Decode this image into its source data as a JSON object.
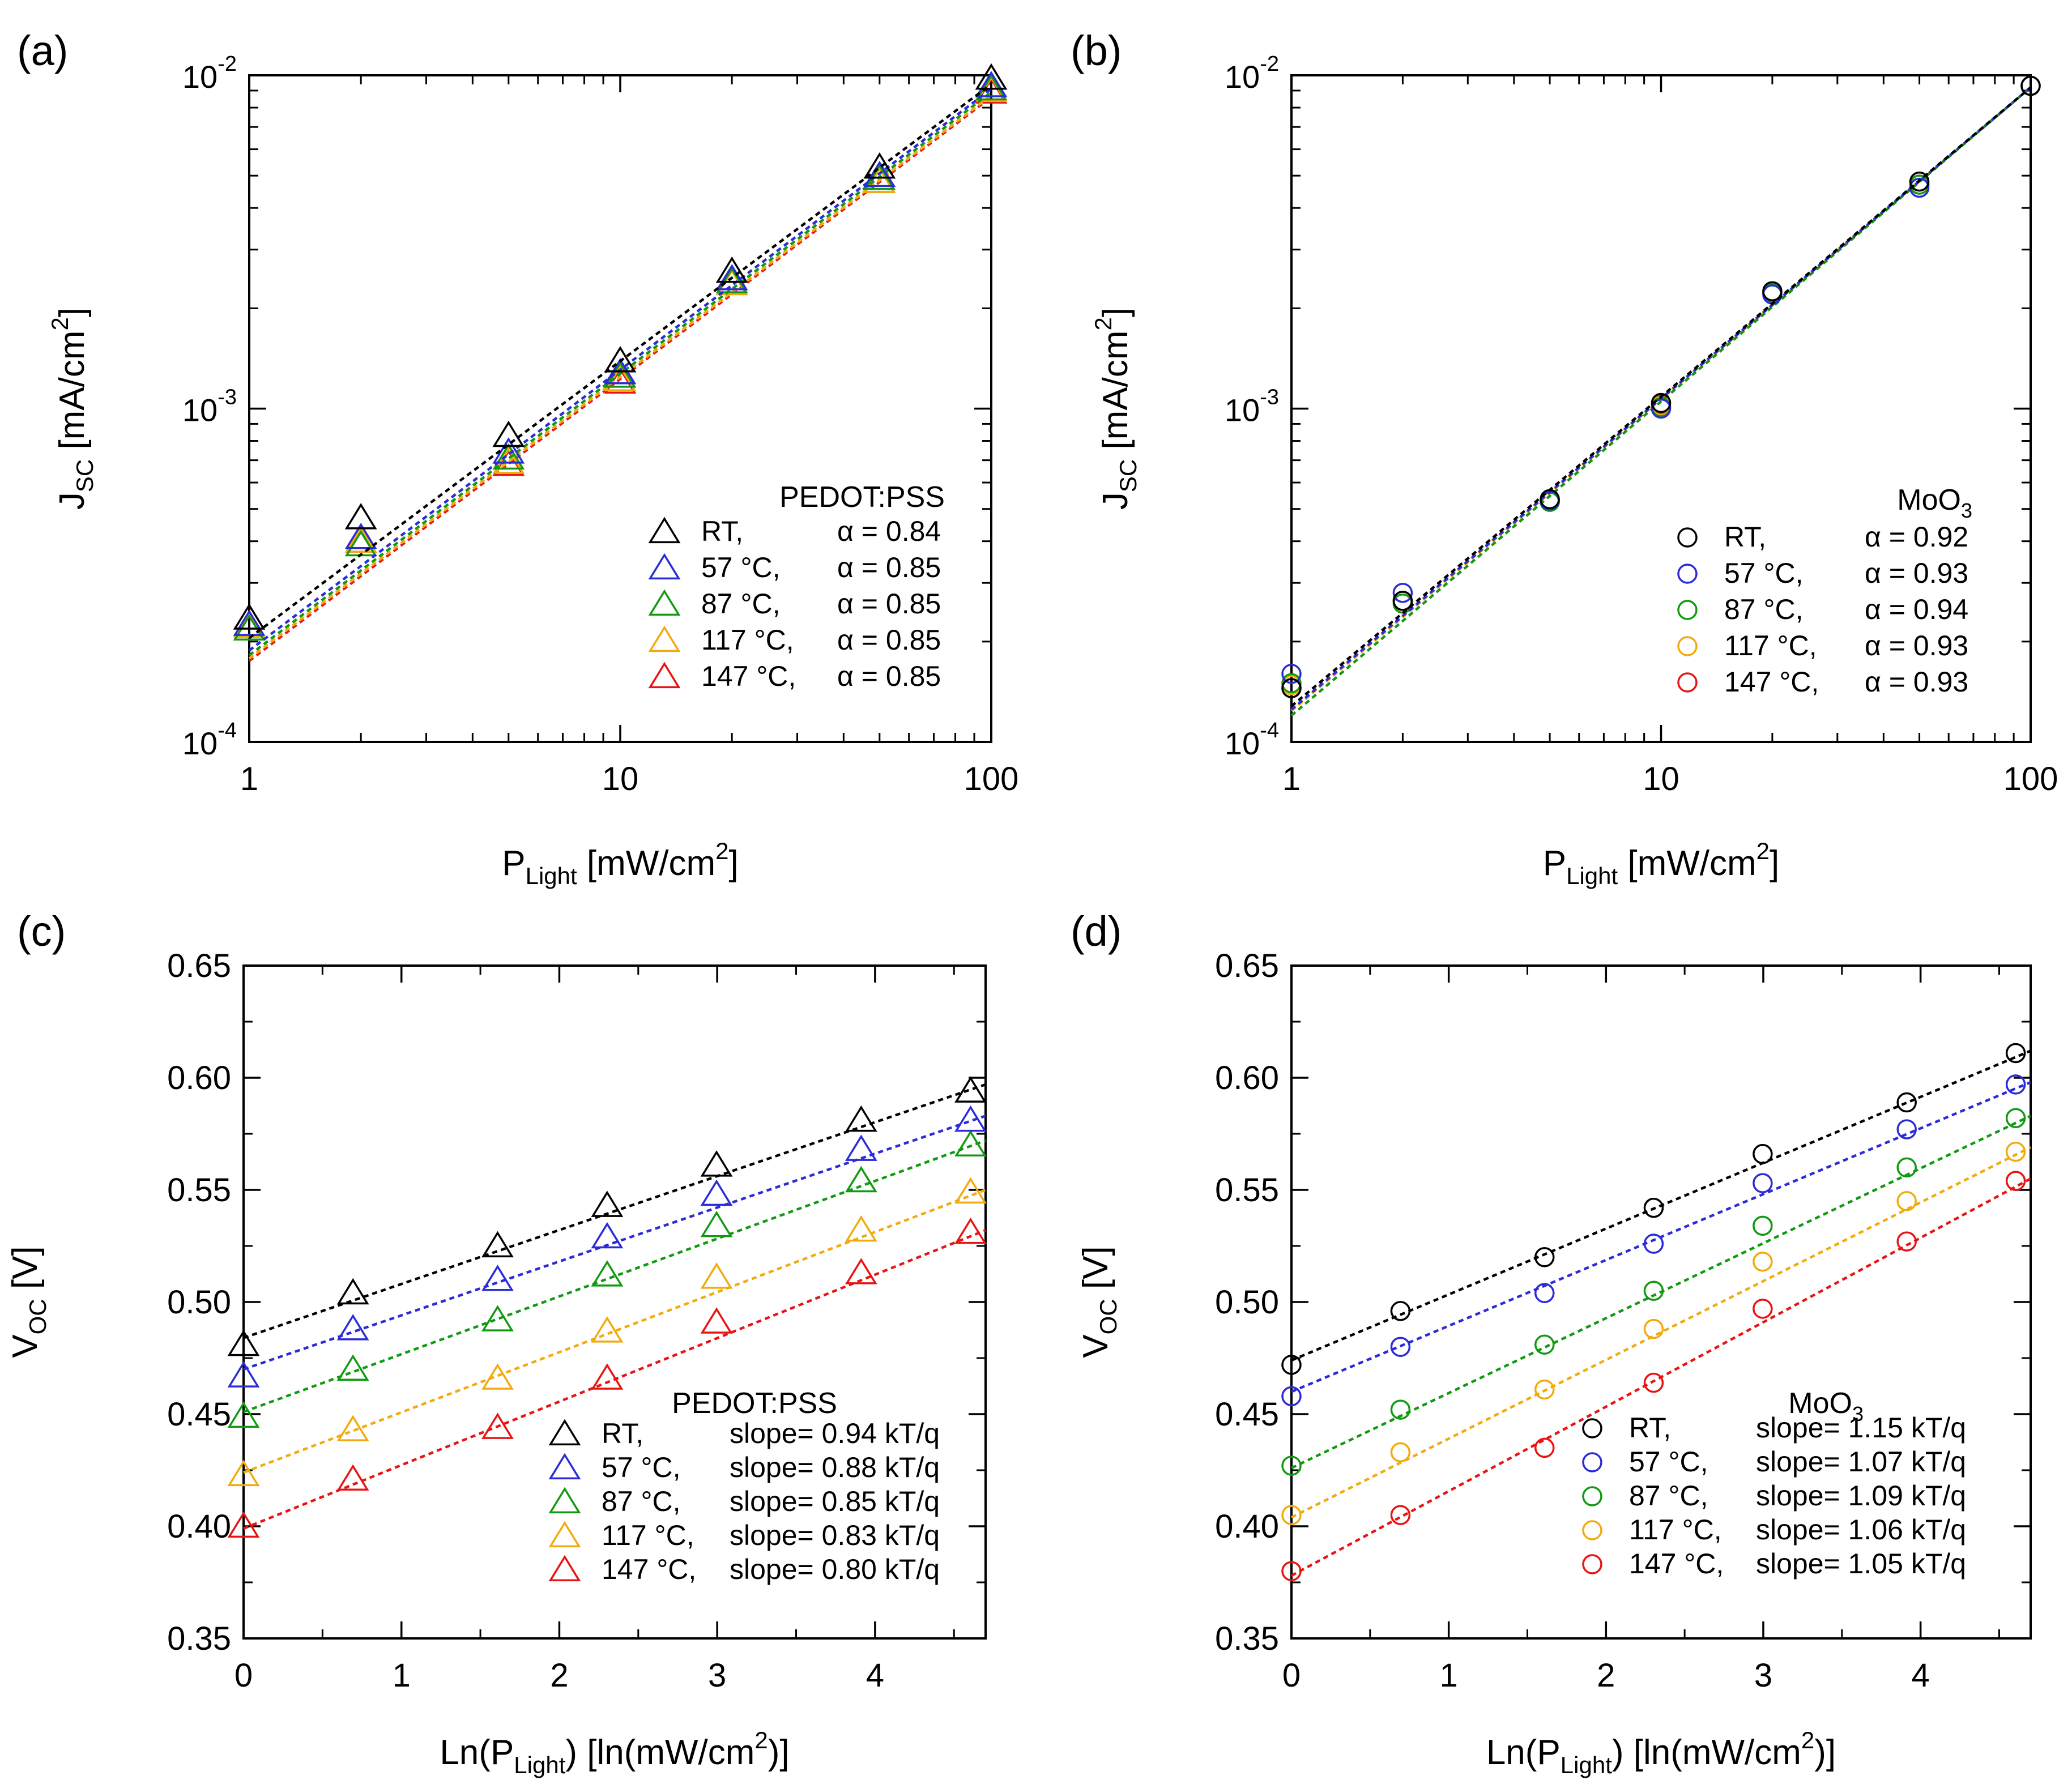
{
  "colors": {
    "axis": "#000000",
    "RT": "#000000",
    "57": "#2b2bd9",
    "87": "#119a11",
    "117": "#f2ab0e",
    "147": "#e81414"
  },
  "chart_data": [
    {
      "panel": "(a)",
      "type": "scatter",
      "scale": "log-log",
      "marker": "triangle",
      "xlim": [
        1,
        100
      ],
      "ylim": [
        0.0001,
        0.01
      ],
      "xticks": [
        {
          "v": 1,
          "label": "1"
        },
        {
          "v": 10,
          "label": "10"
        },
        {
          "v": 100,
          "label": "100"
        }
      ],
      "yticks": [
        {
          "v": 0.0001,
          "base": "10",
          "exp": "-4"
        },
        {
          "v": 0.001,
          "base": "10",
          "exp": "-3"
        },
        {
          "v": 0.01,
          "base": "10",
          "exp": "-2"
        }
      ],
      "xlabel": {
        "main": "P",
        "sub": "Light",
        "tail": " [mW/cm",
        "sup": "2",
        "end": "]"
      },
      "ylabel": {
        "main": "J",
        "sub": "SC",
        "tail": " [mA/cm",
        "sup": "2",
        "end": "]"
      },
      "legend_title": {
        "main": "PEDOT:PSS",
        "sub": ""
      },
      "legend_position": "bottom-right",
      "x": [
        1,
        2,
        5,
        10,
        20,
        50,
        100
      ],
      "series": [
        {
          "key": "RT",
          "name": "RT,",
          "value_label": "α = 0.84",
          "values": [
            0.000235,
            0.00047,
            0.00083,
            0.00139,
            0.00258,
            0.0053,
            0.0098
          ],
          "fit": [
            0.000205,
            0.0094
          ]
        },
        {
          "key": "57",
          "name": "57 °C,",
          "value_label": "α = 0.85",
          "values": [
            0.000225,
            0.00041,
            0.00074,
            0.00128,
            0.00245,
            0.005,
            0.0093
          ],
          "fit": [
            0.000188,
            0.0091
          ]
        },
        {
          "key": "87",
          "name": "87 °C,",
          "value_label": "α = 0.85",
          "values": [
            0.000218,
            0.00039,
            0.00071,
            0.00125,
            0.0024,
            0.0049,
            0.0091
          ],
          "fit": [
            0.000182,
            0.0089
          ]
        },
        {
          "key": "117",
          "name": "117 °C,",
          "value_label": "α = 0.85",
          "values": [
            0.000222,
            0.0004,
            0.00069,
            0.00122,
            0.00237,
            0.0048,
            0.009
          ],
          "fit": [
            0.000178,
            0.0087
          ]
        },
        {
          "key": "147",
          "name": "147 °C,",
          "value_label": "α = 0.85",
          "values": [
            0.000222,
            0.0004,
            0.00068,
            0.0012,
            0.00237,
            0.0048,
            0.0089
          ],
          "fit": [
            0.000175,
            0.0086
          ]
        }
      ]
    },
    {
      "panel": "(b)",
      "type": "scatter",
      "scale": "log-log",
      "marker": "circle",
      "xlim": [
        1,
        100
      ],
      "ylim": [
        0.0001,
        0.01
      ],
      "xticks": [
        {
          "v": 1,
          "label": "1"
        },
        {
          "v": 10,
          "label": "10"
        },
        {
          "v": 100,
          "label": "100"
        }
      ],
      "yticks": [
        {
          "v": 0.0001,
          "base": "10",
          "exp": "-4"
        },
        {
          "v": 0.001,
          "base": "10",
          "exp": "-3"
        },
        {
          "v": 0.01,
          "base": "10",
          "exp": "-2"
        }
      ],
      "xlabel": {
        "main": "P",
        "sub": "Light",
        "tail": " [mW/cm",
        "sup": "2",
        "end": "]"
      },
      "ylabel": {
        "main": "J",
        "sub": "SC",
        "tail": " [mA/cm",
        "sup": "2",
        "end": "]"
      },
      "legend_title": {
        "main": "MoO",
        "sub": "3"
      },
      "legend_position": "bottom-right",
      "x": [
        1,
        2,
        5,
        10,
        20,
        50,
        100
      ],
      "series": [
        {
          "key": "RT",
          "name": "RT,",
          "value_label": "α = 0.92",
          "values": [
            0.000145,
            0.000265,
            0.000535,
            0.00104,
            0.00225,
            0.0048,
            0.0093
          ],
          "fit": [
            0.000128,
            0.0092
          ]
        },
        {
          "key": "57",
          "name": "57 °C,",
          "value_label": "α = 0.93",
          "values": [
            0.00016,
            0.00028,
            0.00053,
            0.001,
            0.0022,
            0.0046,
            0.0093
          ],
          "fit": [
            0.000125,
            0.0092
          ]
        },
        {
          "key": "87",
          "name": "87 °C,",
          "value_label": "α = 0.94",
          "values": [
            0.00015,
            0.00026,
            0.000525,
            0.00101,
            0.00222,
            0.0047,
            0.0093
          ],
          "fit": [
            0.00012,
            0.0092
          ]
        },
        {
          "key": "117",
          "name": "117 °C,",
          "value_label": "α = 0.93",
          "values": [
            0.000148,
            0.000265,
            0.00053,
            0.00102,
            0.00222,
            0.0047,
            0.0093
          ],
          "fit": [
            0.000124,
            0.0092
          ]
        },
        {
          "key": "147",
          "name": "147 °C,",
          "value_label": "α = 0.93",
          "values": [
            0.000145,
            0.000265,
            0.00053,
            0.00103,
            0.00223,
            0.0047,
            0.0093
          ],
          "fit": [
            0.000124,
            0.0092
          ]
        }
      ]
    },
    {
      "panel": "(c)",
      "type": "scatter",
      "scale": "linear",
      "marker": "triangle",
      "xlim": [
        0,
        4.7
      ],
      "ylim": [
        0.35,
        0.65
      ],
      "xticks": [
        {
          "v": 0,
          "label": "0"
        },
        {
          "v": 1,
          "label": "1"
        },
        {
          "v": 2,
          "label": "2"
        },
        {
          "v": 3,
          "label": "3"
        },
        {
          "v": 4,
          "label": "4"
        }
      ],
      "yticks": [
        {
          "v": 0.35,
          "label": "0.35"
        },
        {
          "v": 0.4,
          "label": "0.40"
        },
        {
          "v": 0.45,
          "label": "0.45"
        },
        {
          "v": 0.5,
          "label": "0.50"
        },
        {
          "v": 0.55,
          "label": "0.55"
        },
        {
          "v": 0.6,
          "label": "0.60"
        },
        {
          "v": 0.65,
          "label": "0.65"
        }
      ],
      "xlabel": {
        "main": "Ln(P",
        "sub": "Light",
        "tail": ") [ln(mW/cm",
        "sup": "2",
        "end": ")]"
      },
      "ylabel": {
        "main": "V",
        "sub": "OC",
        "tail": " [V]",
        "sup": "",
        "end": ""
      },
      "legend_title": {
        "main": "PEDOT:PSS",
        "sub": ""
      },
      "legend_position": "bottom-right",
      "x": [
        0,
        0.693,
        1.609,
        2.303,
        2.996,
        3.912,
        4.605
      ],
      "series": [
        {
          "key": "RT",
          "name": "RT,",
          "value_label": "slope= 0.94 kT/q",
          "values": [
            0.481,
            0.504,
            0.525,
            0.543,
            0.561,
            0.581,
            0.594
          ],
          "fit": [
            0.484,
            0.597
          ]
        },
        {
          "key": "57",
          "name": "57 °C,",
          "value_label": "slope= 0.88 kT/q",
          "values": [
            0.467,
            0.488,
            0.51,
            0.529,
            0.548,
            0.568,
            0.581
          ],
          "fit": [
            0.47,
            0.583
          ]
        },
        {
          "key": "87",
          "name": "87 °C,",
          "value_label": "slope= 0.85 kT/q",
          "values": [
            0.449,
            0.47,
            0.492,
            0.512,
            0.534,
            0.554,
            0.57
          ],
          "fit": [
            0.451,
            0.572
          ]
        },
        {
          "key": "117",
          "name": "117 °C,",
          "value_label": "slope= 0.83 kT/q",
          "values": [
            0.423,
            0.443,
            0.466,
            0.487,
            0.511,
            0.532,
            0.549
          ],
          "fit": [
            0.424,
            0.55
          ]
        },
        {
          "key": "147",
          "name": "147 °C,",
          "value_label": "slope= 0.80 kT/q",
          "values": [
            0.4,
            0.421,
            0.444,
            0.466,
            0.491,
            0.513,
            0.531
          ],
          "fit": [
            0.399,
            0.532
          ]
        }
      ]
    },
    {
      "panel": "(d)",
      "type": "scatter",
      "scale": "linear",
      "marker": "circle",
      "xlim": [
        0,
        4.7
      ],
      "ylim": [
        0.35,
        0.65
      ],
      "xticks": [
        {
          "v": 0,
          "label": "0"
        },
        {
          "v": 1,
          "label": "1"
        },
        {
          "v": 2,
          "label": "2"
        },
        {
          "v": 3,
          "label": "3"
        },
        {
          "v": 4,
          "label": "4"
        }
      ],
      "yticks": [
        {
          "v": 0.35,
          "label": "0.35"
        },
        {
          "v": 0.4,
          "label": "0.40"
        },
        {
          "v": 0.45,
          "label": "0.45"
        },
        {
          "v": 0.5,
          "label": "0.50"
        },
        {
          "v": 0.55,
          "label": "0.55"
        },
        {
          "v": 0.6,
          "label": "0.60"
        },
        {
          "v": 0.65,
          "label": "0.65"
        }
      ],
      "xlabel": {
        "main": "Ln(P",
        "sub": "Light",
        "tail": ") [ln(mW/cm",
        "sup": "2",
        "end": ")]"
      },
      "ylabel": {
        "main": "V",
        "sub": "OC",
        "tail": " [V]",
        "sup": "",
        "end": ""
      },
      "legend_title": {
        "main": "MoO",
        "sub": "3"
      },
      "legend_position": "bottom-right",
      "x": [
        0,
        0.693,
        1.609,
        2.303,
        2.996,
        3.912,
        4.605
      ],
      "series": [
        {
          "key": "RT",
          "name": "RT,",
          "value_label": "slope= 1.15 kT/q",
          "values": [
            0.472,
            0.496,
            0.52,
            0.542,
            0.566,
            0.589,
            0.611
          ],
          "fit": [
            0.474,
            0.612
          ]
        },
        {
          "key": "57",
          "name": "57 °C,",
          "value_label": "slope= 1.07 kT/q",
          "values": [
            0.458,
            0.48,
            0.504,
            0.526,
            0.553,
            0.577,
            0.597
          ],
          "fit": [
            0.46,
            0.598
          ]
        },
        {
          "key": "87",
          "name": "87 °C,",
          "value_label": "slope= 1.09 kT/q",
          "values": [
            0.427,
            0.452,
            0.481,
            0.505,
            0.534,
            0.56,
            0.582
          ],
          "fit": [
            0.426,
            0.583
          ]
        },
        {
          "key": "117",
          "name": "117 °C,",
          "value_label": "slope= 1.06 kT/q",
          "values": [
            0.405,
            0.433,
            0.461,
            0.488,
            0.518,
            0.545,
            0.567
          ],
          "fit": [
            0.404,
            0.569
          ]
        },
        {
          "key": "147",
          "name": "147 °C,",
          "value_label": "slope= 1.05 kT/q",
          "values": [
            0.38,
            0.405,
            0.435,
            0.464,
            0.497,
            0.527,
            0.554
          ],
          "fit": [
            0.378,
            0.555
          ]
        }
      ]
    }
  ]
}
